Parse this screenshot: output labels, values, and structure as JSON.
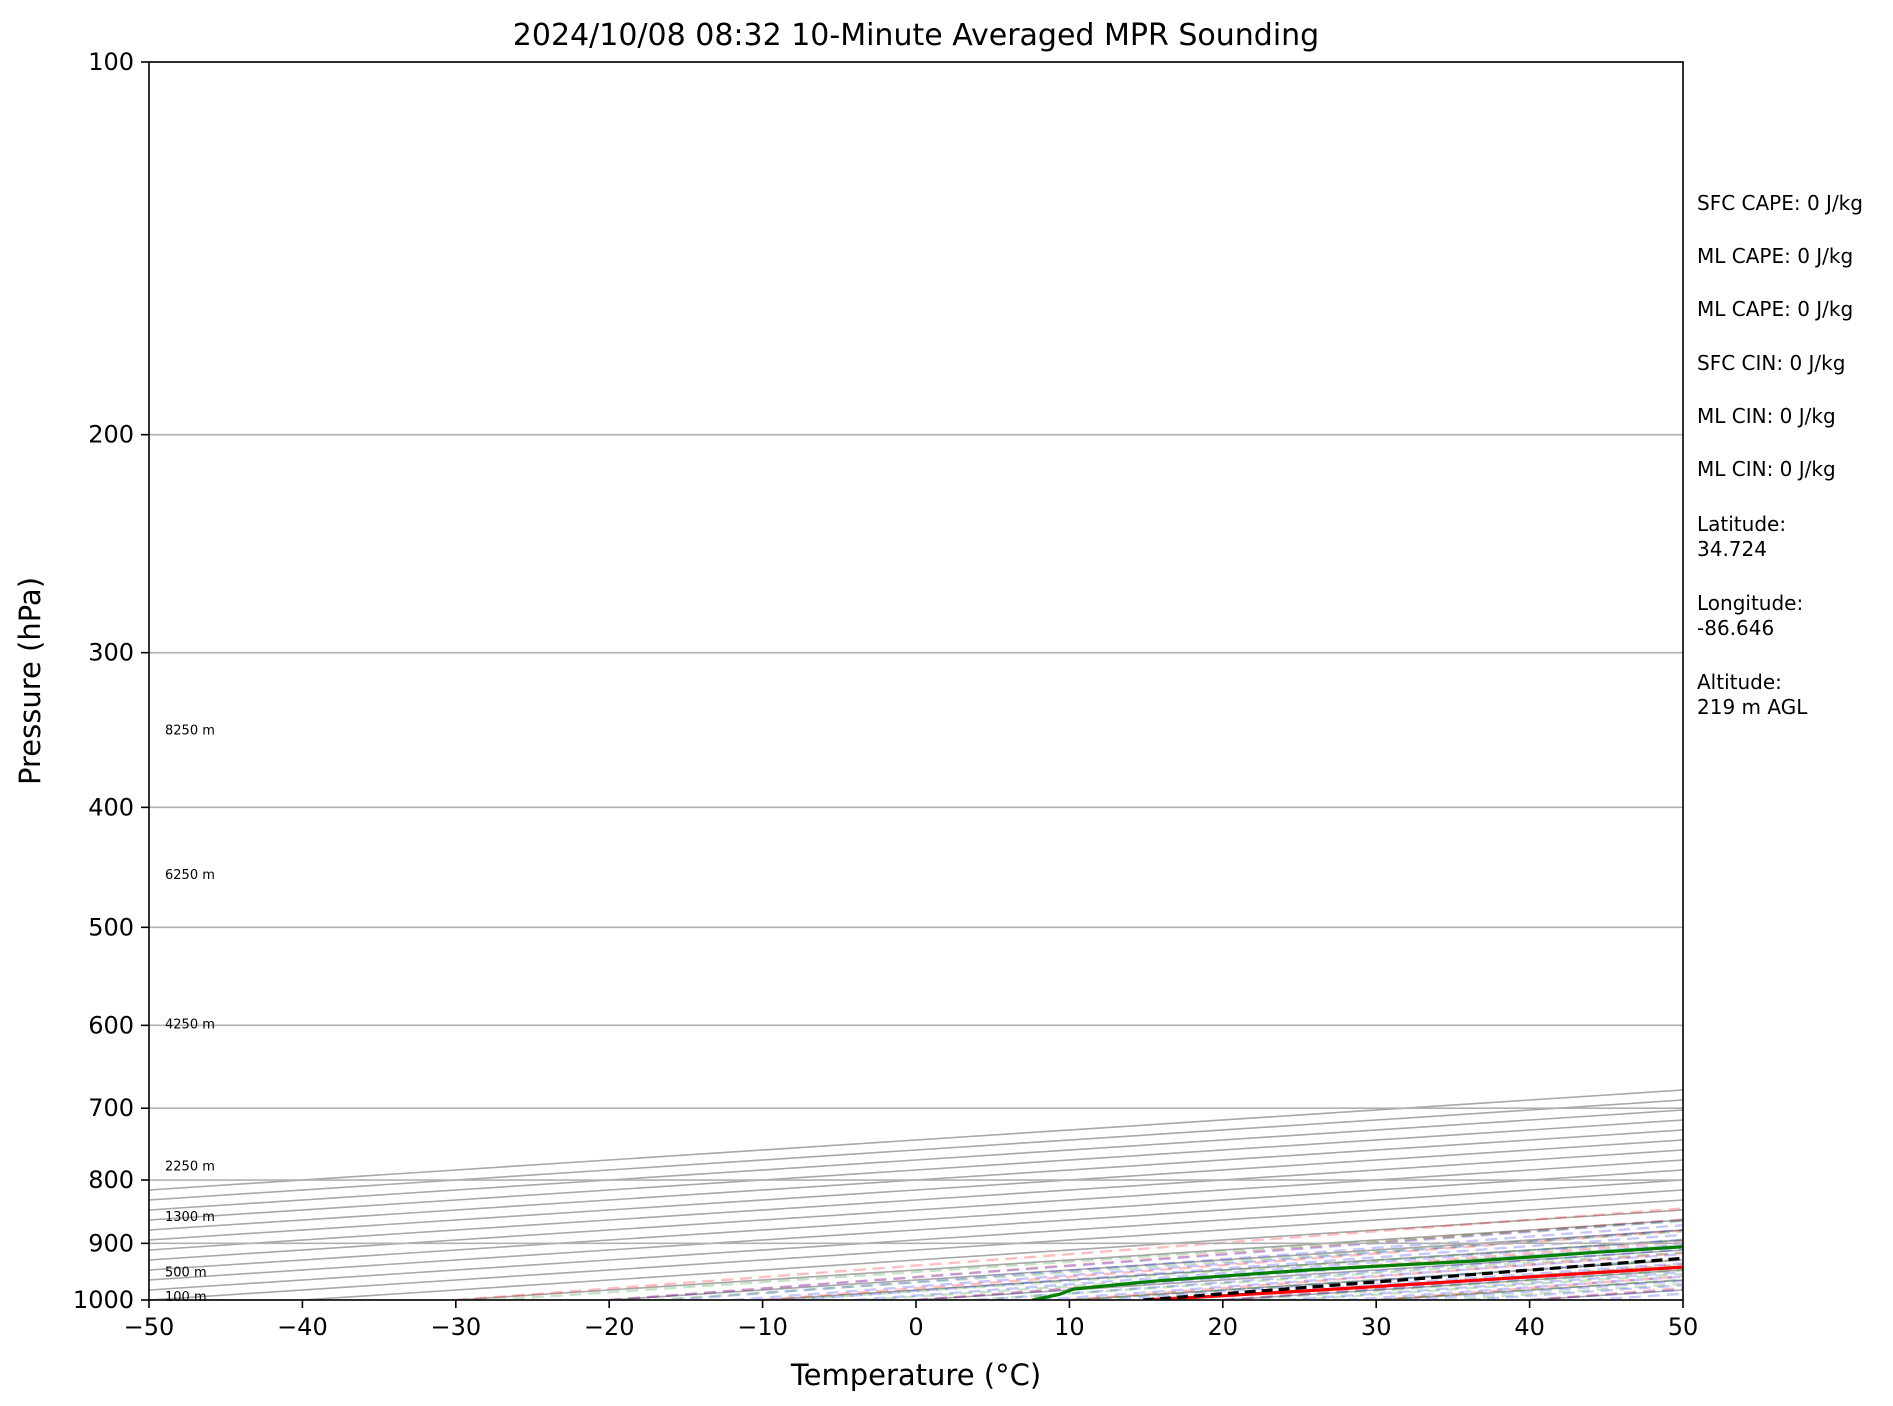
{
  "chart_data": {
    "type": "line",
    "title": "2024/10/08 08:32 10-Minute Averaged MPR Sounding",
    "xlabel": "Temperature (°C)",
    "ylabel": "Pressure (hPa)",
    "xlim": [
      -50,
      50
    ],
    "ylim": [
      1000,
      100
    ],
    "y_scale": "log",
    "x_ticks": [
      -50,
      -40,
      -30,
      -20,
      -10,
      0,
      10,
      20,
      30,
      40,
      50
    ],
    "x_tick_labels": [
      "−50",
      "−40",
      "−30",
      "−20",
      "−10",
      "0",
      "10",
      "20",
      "30",
      "40",
      "50"
    ],
    "y_ticks": [
      1000,
      900,
      800,
      700,
      600,
      500,
      400,
      300,
      200,
      100
    ],
    "y_tick_labels": [
      "1000",
      "900",
      "800",
      "700",
      "600",
      "500",
      "400",
      "300",
      "200",
      "100"
    ],
    "grid": true,
    "skew_degrees": 45,
    "background_lines": {
      "isotherms": "gray solid",
      "dry_adiabats": "red dashed",
      "moist_adiabats": "blue dashed",
      "mixing_ratio_lines": "green dashed"
    },
    "series": [
      {
        "key": "temperature",
        "color": "#ff0000",
        "pressure": [
          1000,
          995,
          985,
          970,
          955,
          940,
          925,
          910,
          895,
          880,
          865,
          850,
          835,
          820,
          805,
          790,
          775,
          760,
          745,
          730,
          715,
          700,
          685,
          670,
          655,
          640,
          625,
          610,
          595,
          580,
          565,
          550,
          535,
          520,
          505,
          490,
          475,
          460,
          445,
          430,
          415,
          400,
          385,
          370,
          355,
          340,
          325,
          310,
          295,
          280
        ],
        "temperature": [
          14.8,
          15.5,
          16.2,
          16.7,
          17.0,
          17.2,
          17.5,
          17.6,
          17.5,
          17.5,
          17.4,
          17.6,
          17.1,
          16.4,
          15.5,
          14.6,
          13.6,
          12.6,
          11.6,
          10.5,
          9.3,
          8.0,
          6.8,
          5.5,
          4.2,
          3.0,
          2.0,
          0.9,
          -0.3,
          -1.5,
          -2.6,
          -4.0,
          -5.4,
          -6.9,
          -8.4,
          -10.0,
          -11.6,
          -13.4,
          -15.0,
          -16.9,
          -18.8,
          -20.7,
          -22.7,
          -24.8,
          -27.0,
          -29.3,
          -31.5,
          -34.0,
          -36.4,
          -39.0
        ]
      },
      {
        "key": "dewpoint",
        "color": "#008000",
        "pressure": [
          1000,
          990,
          980,
          965,
          950,
          945,
          930,
          915,
          900,
          885,
          870,
          855,
          840,
          825,
          810,
          795,
          780,
          760,
          740,
          715,
          695,
          670,
          645,
          625,
          600,
          580,
          555,
          530,
          515,
          505,
          490,
          475,
          455,
          440,
          425,
          405,
          385,
          370,
          355,
          335,
          320,
          305,
          300
        ],
        "temperature": [
          7.6,
          3.9,
          -0.6,
          -3.4,
          -4.2,
          -4.5,
          -2.6,
          -3.3,
          -3.2,
          -6.4,
          -11.0,
          -13.8,
          -17.8,
          -20.2,
          -21.4,
          -21.5,
          -24.3,
          -29.0,
          -34.5,
          -39.2,
          -44.8,
          -50.0,
          -52.9,
          -56.2,
          -59.6,
          -61.8,
          -64.0,
          -64.0,
          -64.0,
          -66.5,
          -66.0,
          -64.5,
          -65.5,
          -66.5,
          -69.0,
          -69.0,
          -70.5,
          -72.0,
          -72.5,
          -75.0,
          -77.5,
          -97.0,
          -120.0
        ]
      },
      {
        "key": "parcel",
        "color": "#000000",
        "dashed": true,
        "pressure": [
          1000,
          980,
          960,
          940,
          920,
          900,
          880,
          860,
          840,
          820,
          800,
          780,
          760,
          740,
          720,
          700,
          680,
          660,
          640,
          620,
          600,
          580,
          560,
          540,
          520,
          500,
          480,
          460,
          440,
          420,
          400,
          380,
          360,
          340,
          320,
          300,
          280
        ],
        "temperature": [
          14.8,
          13.1,
          11.3,
          9.6,
          7.8,
          5.9,
          4.0,
          2.1,
          0.2,
          -1.6,
          -3.3,
          -5.1,
          -6.9,
          -8.7,
          -10.6,
          -12.5,
          -14.4,
          -16.4,
          -18.5,
          -20.6,
          -22.8,
          -25.1,
          -27.5,
          -30.0,
          -32.6,
          -35.3,
          -38.2,
          -41.2,
          -44.3,
          -47.5,
          -50.8,
          -54.2,
          -57.7,
          -61.2,
          -64.8,
          -68.4,
          -72.0
        ]
      }
    ],
    "height_labels": [
      "100 m",
      "500 m",
      "1300 m",
      "2250 m",
      "4250 m",
      "6250 m",
      "8250 m"
    ],
    "height_label_pressures": [
      993,
      948,
      855,
      779,
      598,
      453,
      346
    ]
  },
  "indices": [
    "SFC CAPE: 0 J/kg",
    "ML CAPE: 0 J/kg",
    "ML CAPE: 0 J/kg",
    "SFC CIN: 0 J/kg",
    "ML CIN: 0 J/kg",
    "ML CIN: 0 J/kg"
  ],
  "location": {
    "latitude_label": "Latitude:",
    "latitude_value": "34.724",
    "longitude_label": "Longitude:",
    "longitude_value": "-86.646",
    "altitude_label": "Altitude:",
    "altitude_value": "219 m AGL"
  }
}
